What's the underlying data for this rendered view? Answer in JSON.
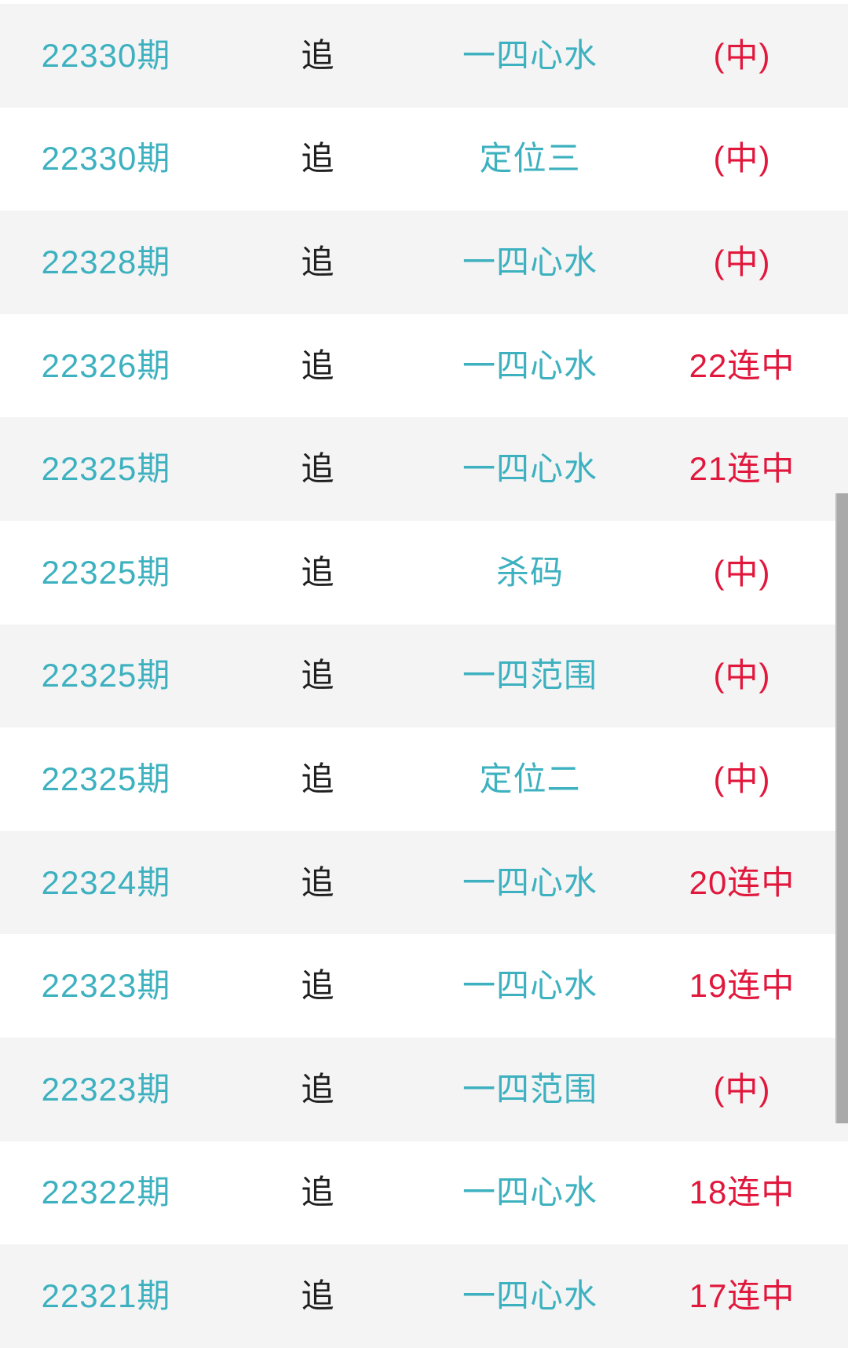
{
  "list_title": "lottery-follow-records",
  "columns": [
    "period",
    "action",
    "type",
    "result"
  ],
  "rows": [
    {
      "period": "22330期",
      "action": "追",
      "type": "一四心水",
      "result": "(中)"
    },
    {
      "period": "22330期",
      "action": "追",
      "type": "定位三",
      "result": "(中)"
    },
    {
      "period": "22328期",
      "action": "追",
      "type": "一四心水",
      "result": "(中)"
    },
    {
      "period": "22326期",
      "action": "追",
      "type": "一四心水",
      "result": "22连中"
    },
    {
      "period": "22325期",
      "action": "追",
      "type": "一四心水",
      "result": "21连中"
    },
    {
      "period": "22325期",
      "action": "追",
      "type": "杀码",
      "result": "(中)"
    },
    {
      "period": "22325期",
      "action": "追",
      "type": "一四范围",
      "result": "(中)"
    },
    {
      "period": "22325期",
      "action": "追",
      "type": "定位二",
      "result": "(中)"
    },
    {
      "period": "22324期",
      "action": "追",
      "type": "一四心水",
      "result": "20连中"
    },
    {
      "period": "22323期",
      "action": "追",
      "type": "一四心水",
      "result": "19连中"
    },
    {
      "period": "22323期",
      "action": "追",
      "type": "一四范围",
      "result": "(中)"
    },
    {
      "period": "22322期",
      "action": "追",
      "type": "一四心水",
      "result": "18连中"
    },
    {
      "period": "22321期",
      "action": "追",
      "type": "一四心水",
      "result": "17连中"
    }
  ],
  "colors": {
    "accent_teal": "#3db1bf",
    "result_red": "#e1173c",
    "text_dark": "#1f1f1f",
    "row_alt_bg": "#f4f4f5",
    "row_bg": "#ffffff",
    "scrollbar": "#a9a9a9"
  }
}
